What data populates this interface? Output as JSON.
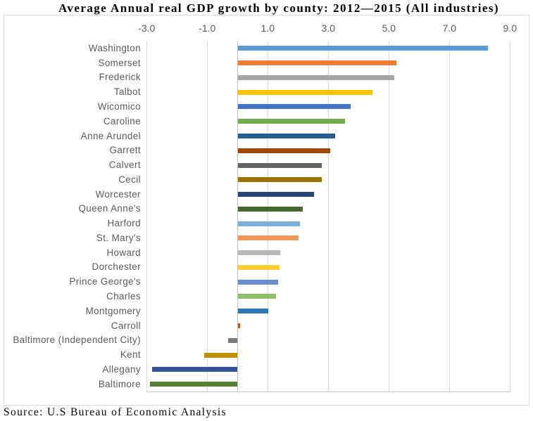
{
  "chart": {
    "title": "Average Annual real GDP growth by county: 2012—2015 (All industries)",
    "source_note": "Source: U.S Bureau of Economic Analysis"
  },
  "chart_data": {
    "type": "bar",
    "orientation": "horizontal",
    "title": "Average Annual real GDP growth by county: 2012—2015 (All industries)",
    "xlabel": "",
    "ylabel": "",
    "categories": [
      "Washington",
      "Somerset",
      "Frederick",
      "Talbot",
      "Wicomico",
      "Caroline",
      "Anne Arundel",
      "Garrett",
      "Calvert",
      "Cecil",
      "Worcester",
      "Queen Anne's",
      "Harford",
      "St. Mary's",
      "Howard",
      "Dorchester",
      "Prince George's",
      "Charles",
      "Montgomery",
      "Carroll",
      "Baltimore (Independent City)",
      "Kent",
      "Allegany",
      "Baltimore"
    ],
    "values": [
      8.27,
      5.23,
      5.17,
      4.44,
      3.72,
      3.54,
      3.22,
      3.05,
      2.78,
      2.78,
      2.51,
      2.14,
      2.06,
      2.01,
      1.41,
      1.37,
      1.32,
      1.25,
      1.01,
      0.08,
      -0.31,
      -1.09,
      -2.82,
      -2.9
    ],
    "bar_colors": [
      "#5b9bd5",
      "#ed7d31",
      "#a5a5a5",
      "#ffc000",
      "#4472c4",
      "#70ad47",
      "#255e91",
      "#9e480e",
      "#636363",
      "#997300",
      "#264478",
      "#43682b",
      "#7cafdd",
      "#f1975a",
      "#b7b7b7",
      "#ffcd33",
      "#698ed0",
      "#8cc168",
      "#2e75b6",
      "#c45911",
      "#7b7b7b",
      "#bf9000",
      "#2f5597",
      "#548235"
    ],
    "x_ticks": [
      -3.0,
      -1.0,
      1.0,
      3.0,
      5.0,
      7.0,
      9.0
    ],
    "x_tick_labels": [
      "-3.0",
      "-1.0",
      "1.0",
      "3.0",
      "5.0",
      "7.0",
      "9.0"
    ],
    "xlim": [
      -3.0,
      9.0
    ],
    "grid": true,
    "legend": false,
    "tick_label_position": "top",
    "source_note": "Source: U.S Bureau of Economic Analysis",
    "colors": {
      "axis_label": "#595959",
      "gridline": "#d9d9d9",
      "axis_line": "#bfbfbf",
      "chart_border": "#d9d9d9",
      "background": "#ffffff"
    }
  }
}
